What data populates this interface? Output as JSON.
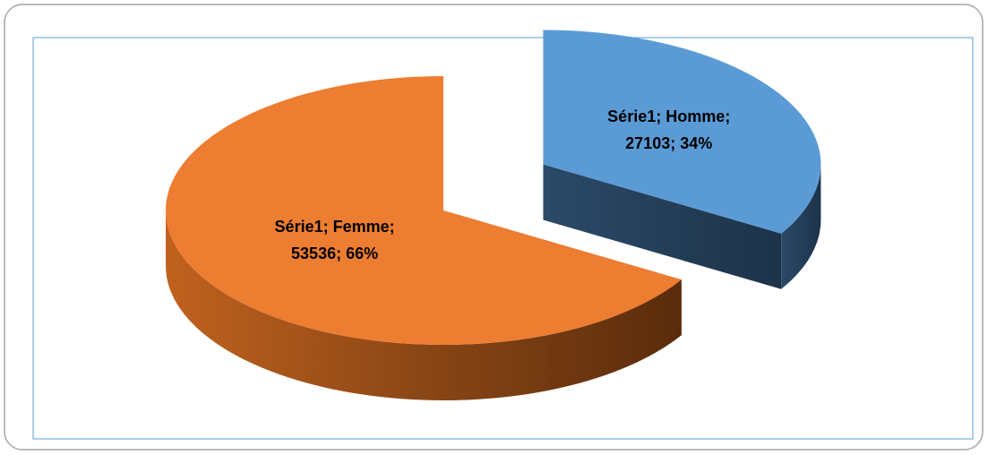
{
  "chart_data": {
    "type": "pie",
    "values": [
      27103,
      53536
    ],
    "value_labels": [
      "Série1; Homme; 27103; 34%",
      "Série1; Femme; 53536; 66%"
    ],
    "colors": [
      "#5b9bd5",
      "#ed7d31"
    ],
    "exploded": [
      true,
      false
    ]
  }
}
